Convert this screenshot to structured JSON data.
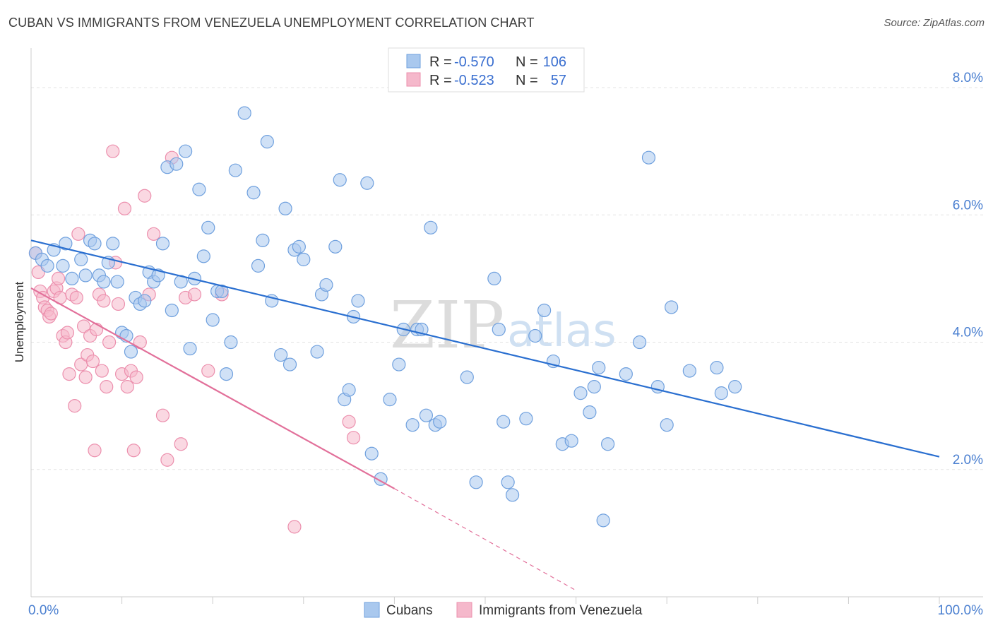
{
  "title": "CUBAN VS IMMIGRANTS FROM VENEZUELA UNEMPLOYMENT CORRELATION CHART",
  "source": "Source: ZipAtlas.com",
  "watermark": {
    "zip": "ZIP",
    "atlas": "atlas"
  },
  "legend_top": [
    {
      "r_label": "R = ",
      "r_value": "-0.570",
      "n_label": "N = ",
      "n_value": "106"
    },
    {
      "r_label": "R = ",
      "r_value": "-0.523",
      "n_label": "N = ",
      "n_value": "57"
    }
  ],
  "colors": {
    "cubans_fill": "#a9c8ee",
    "cubans_stroke": "#6fa0de",
    "cubans_line": "#2a6fd0",
    "venezuela_fill": "#f5b8cb",
    "venezuela_stroke": "#ec8fad",
    "venezuela_line": "#e2709a"
  },
  "chart_data": {
    "type": "scatter",
    "xlabel": "",
    "ylabel": "Unemployment",
    "xlim": [
      0,
      100
    ],
    "ylim": [
      0,
      8.5
    ],
    "x_tick_labels": [
      "0.0%",
      "100.0%"
    ],
    "y_ticks": [
      2,
      4,
      6,
      8
    ],
    "y_tick_labels": [
      "2.0%",
      "4.0%",
      "6.0%",
      "8.0%"
    ],
    "grid": "horizontal dashed",
    "legend_placement": "bottom-center",
    "series": [
      {
        "name": "Cubans",
        "trend": {
          "x": [
            0,
            100
          ],
          "y": [
            5.6,
            2.2
          ],
          "dashed_from": null
        },
        "points": [
          [
            0.5,
            5.4
          ],
          [
            1.2,
            5.3
          ],
          [
            1.8,
            5.2
          ],
          [
            2.5,
            5.45
          ],
          [
            3.5,
            5.2
          ],
          [
            3.8,
            5.55
          ],
          [
            4.5,
            5.0
          ],
          [
            5.5,
            5.3
          ],
          [
            6.0,
            5.05
          ],
          [
            6.5,
            5.6
          ],
          [
            7.0,
            5.55
          ],
          [
            7.5,
            5.05
          ],
          [
            8.0,
            4.95
          ],
          [
            8.5,
            5.25
          ],
          [
            9.0,
            5.55
          ],
          [
            9.5,
            4.95
          ],
          [
            10.0,
            4.15
          ],
          [
            10.5,
            4.1
          ],
          [
            11.0,
            3.85
          ],
          [
            11.5,
            4.7
          ],
          [
            12.0,
            4.6
          ],
          [
            12.5,
            4.65
          ],
          [
            13.0,
            5.1
          ],
          [
            13.5,
            4.95
          ],
          [
            14.0,
            5.05
          ],
          [
            14.5,
            5.55
          ],
          [
            15.0,
            6.75
          ],
          [
            15.5,
            4.5
          ],
          [
            16.0,
            6.8
          ],
          [
            16.5,
            4.95
          ],
          [
            17.0,
            7.0
          ],
          [
            17.5,
            3.9
          ],
          [
            18.0,
            5.0
          ],
          [
            18.5,
            6.4
          ],
          [
            19.0,
            5.35
          ],
          [
            19.5,
            5.8
          ],
          [
            20.0,
            4.35
          ],
          [
            20.5,
            4.8
          ],
          [
            21.0,
            4.8
          ],
          [
            21.5,
            3.5
          ],
          [
            22.0,
            4.0
          ],
          [
            22.5,
            6.7
          ],
          [
            23.5,
            7.6
          ],
          [
            24.5,
            6.35
          ],
          [
            25.0,
            5.2
          ],
          [
            25.5,
            5.6
          ],
          [
            26.0,
            7.15
          ],
          [
            26.5,
            4.65
          ],
          [
            27.5,
            3.8
          ],
          [
            28.0,
            6.1
          ],
          [
            28.5,
            3.65
          ],
          [
            29.0,
            5.45
          ],
          [
            29.5,
            5.5
          ],
          [
            30.0,
            5.3
          ],
          [
            31.5,
            3.85
          ],
          [
            32.0,
            4.75
          ],
          [
            32.5,
            4.9
          ],
          [
            33.5,
            5.5
          ],
          [
            34.0,
            6.55
          ],
          [
            34.5,
            3.1
          ],
          [
            35.0,
            3.25
          ],
          [
            35.5,
            4.4
          ],
          [
            36.0,
            4.65
          ],
          [
            37.0,
            6.5
          ],
          [
            37.5,
            2.25
          ],
          [
            38.5,
            1.85
          ],
          [
            39.5,
            3.1
          ],
          [
            40.5,
            3.65
          ],
          [
            41.0,
            4.2
          ],
          [
            42.0,
            2.7
          ],
          [
            42.5,
            4.2
          ],
          [
            43.0,
            4.2
          ],
          [
            43.5,
            2.85
          ],
          [
            44.0,
            5.8
          ],
          [
            44.5,
            2.7
          ],
          [
            45.0,
            2.75
          ],
          [
            48.0,
            3.45
          ],
          [
            49.0,
            1.8
          ],
          [
            51.0,
            5.0
          ],
          [
            51.5,
            4.2
          ],
          [
            52.0,
            2.75
          ],
          [
            52.5,
            1.8
          ],
          [
            53.0,
            1.6
          ],
          [
            54.5,
            2.8
          ],
          [
            55.5,
            4.1
          ],
          [
            56.5,
            4.5
          ],
          [
            57.5,
            3.7
          ],
          [
            58.5,
            2.4
          ],
          [
            59.5,
            2.45
          ],
          [
            60.5,
            3.2
          ],
          [
            61.5,
            2.9
          ],
          [
            62.0,
            3.3
          ],
          [
            62.5,
            3.6
          ],
          [
            63.5,
            2.4
          ],
          [
            65.5,
            3.5
          ],
          [
            67.0,
            4.0
          ],
          [
            68.0,
            6.9
          ],
          [
            69.0,
            3.3
          ],
          [
            70.0,
            2.7
          ],
          [
            70.5,
            4.55
          ],
          [
            72.5,
            3.55
          ],
          [
            75.5,
            3.6
          ],
          [
            76.0,
            3.2
          ],
          [
            77.5,
            3.3
          ],
          [
            63.0,
            1.2
          ]
        ]
      },
      {
        "name": "Immigrants from Venezuela",
        "trend": {
          "x": [
            0,
            40,
            60
          ],
          "y": [
            4.85,
            1.7,
            0.1
          ],
          "dashed_from": 40
        },
        "points": [
          [
            0.5,
            5.4
          ],
          [
            0.8,
            5.1
          ],
          [
            1.0,
            4.8
          ],
          [
            1.3,
            4.7
          ],
          [
            1.5,
            4.55
          ],
          [
            1.8,
            4.5
          ],
          [
            2.0,
            4.4
          ],
          [
            2.2,
            4.45
          ],
          [
            2.5,
            4.8
          ],
          [
            2.8,
            4.85
          ],
          [
            3.0,
            5.0
          ],
          [
            3.2,
            4.7
          ],
          [
            3.5,
            4.1
          ],
          [
            3.8,
            4.0
          ],
          [
            4.0,
            4.15
          ],
          [
            4.2,
            3.5
          ],
          [
            4.5,
            4.75
          ],
          [
            4.8,
            3.0
          ],
          [
            5.0,
            4.7
          ],
          [
            5.2,
            5.7
          ],
          [
            5.5,
            3.65
          ],
          [
            5.8,
            4.25
          ],
          [
            6.0,
            3.45
          ],
          [
            6.2,
            3.8
          ],
          [
            6.5,
            4.1
          ],
          [
            6.8,
            3.7
          ],
          [
            7.0,
            2.3
          ],
          [
            7.2,
            4.2
          ],
          [
            7.5,
            4.75
          ],
          [
            7.8,
            3.55
          ],
          [
            8.0,
            4.65
          ],
          [
            8.3,
            3.3
          ],
          [
            8.6,
            4.0
          ],
          [
            9.0,
            7.0
          ],
          [
            9.3,
            5.25
          ],
          [
            9.6,
            4.6
          ],
          [
            10.0,
            3.5
          ],
          [
            10.3,
            6.1
          ],
          [
            10.6,
            3.3
          ],
          [
            11.0,
            3.55
          ],
          [
            11.3,
            2.3
          ],
          [
            11.6,
            3.45
          ],
          [
            12.0,
            4.0
          ],
          [
            12.5,
            6.3
          ],
          [
            13.0,
            4.75
          ],
          [
            13.5,
            5.7
          ],
          [
            14.5,
            2.85
          ],
          [
            15.0,
            2.15
          ],
          [
            15.5,
            6.9
          ],
          [
            16.5,
            2.4
          ],
          [
            17.0,
            4.7
          ],
          [
            18.0,
            4.75
          ],
          [
            19.5,
            3.55
          ],
          [
            21.0,
            4.75
          ],
          [
            35.0,
            2.75
          ],
          [
            35.5,
            2.5
          ],
          [
            29.0,
            1.1
          ]
        ]
      }
    ]
  },
  "legend_bottom": [
    "Cubans",
    "Immigrants from Venezuela"
  ]
}
